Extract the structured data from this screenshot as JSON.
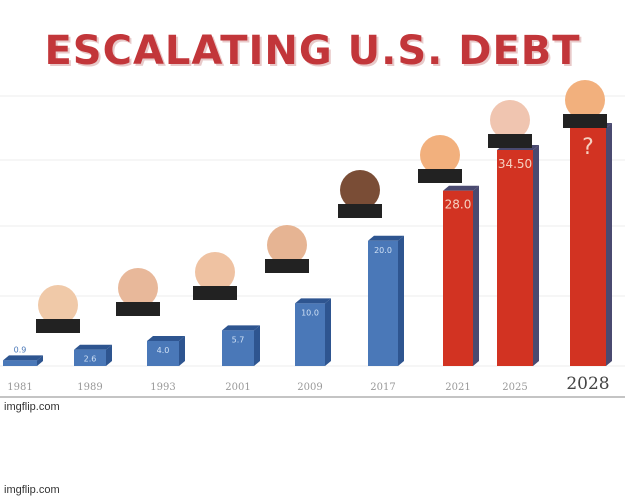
{
  "chart_data": {
    "type": "bar",
    "title": "ESCALATING U.S. DEBT",
    "categories": [
      "1981",
      "1989",
      "1993",
      "2001",
      "2009",
      "2017",
      "2021",
      "2025",
      "2028"
    ],
    "values": [
      0.9,
      2.6,
      4.0,
      5.7,
      10.0,
      20.0,
      28.0,
      34.5,
      null
    ],
    "data_labels": [
      "0.9",
      "2.6",
      "4.0",
      "5.7",
      "10.0",
      "20.0",
      "28.0",
      "34.50",
      "?"
    ],
    "bar_colors": [
      "#4a78b8",
      "#4a78b8",
      "#4a78b8",
      "#4a78b8",
      "#4a78b8",
      "#4a78b8",
      "#d23322",
      "#d23322",
      "#d23322"
    ],
    "xlabel": "",
    "ylabel": "",
    "ylim": [
      0,
      38
    ],
    "grid": true
  },
  "watermark": "imgflip.com"
}
